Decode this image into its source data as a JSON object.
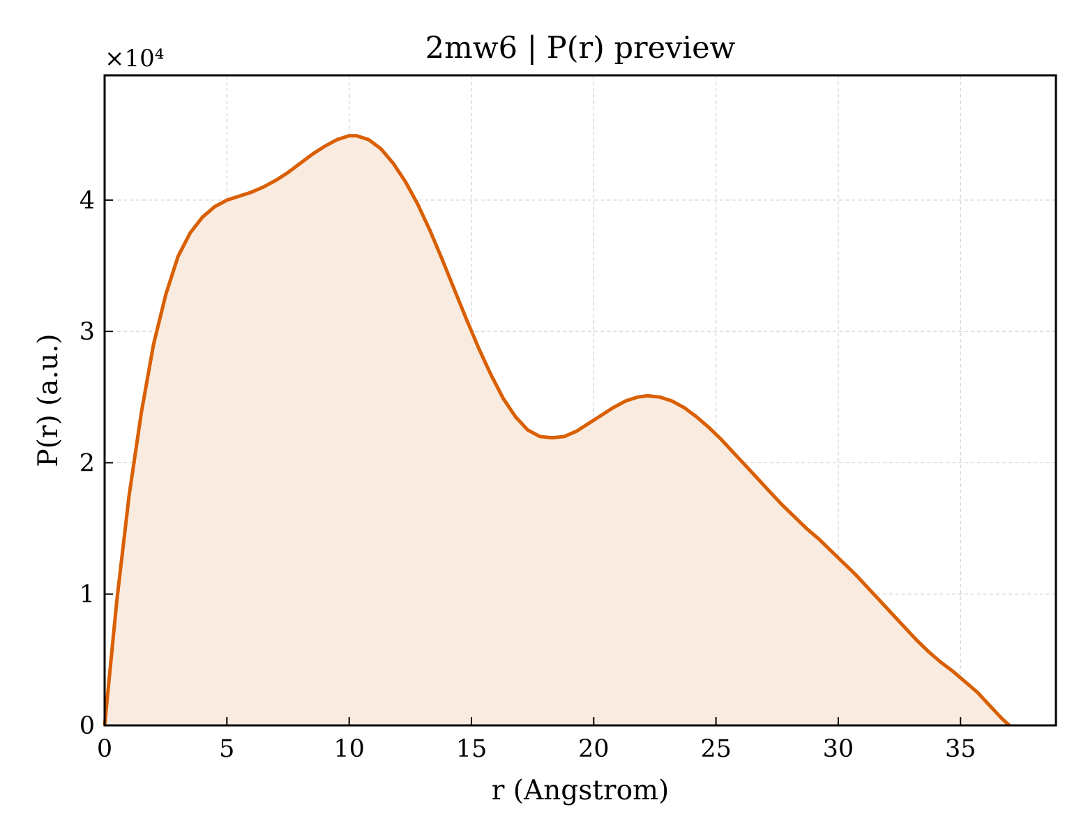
{
  "chart_data": {
    "type": "area",
    "title": "2mw6 | P(r) preview",
    "xlabel": "r (Angstrom)",
    "ylabel": "P(r) (a.u.)",
    "y_offset_label": "×10⁴",
    "xlim": [
      0,
      38.9
    ],
    "ylim": [
      0,
      4.95
    ],
    "xticks": [
      0,
      5,
      10,
      15,
      20,
      25,
      30,
      35
    ],
    "yticks": [
      0,
      1,
      2,
      3,
      4
    ],
    "grid": true,
    "line_color": "#d95f02",
    "fill_color": "#f9ebe0",
    "series": [
      {
        "x": [
          0,
          0.5,
          1.0,
          1.5,
          2.0,
          2.5,
          3.0,
          3.5,
          4.0,
          4.5,
          5.0,
          5.5,
          6.0,
          6.5,
          7.0,
          7.5,
          8.0,
          8.5,
          9.0,
          9.5,
          10.0,
          10.3,
          10.8,
          11.3,
          11.8,
          12.3,
          12.8,
          13.3,
          13.8,
          14.3,
          14.8,
          15.3,
          15.8,
          16.3,
          16.8,
          17.3,
          17.8,
          18.3,
          18.8,
          19.3,
          19.8,
          20.3,
          20.8,
          21.3,
          21.8,
          22.2,
          22.7,
          23.2,
          23.7,
          24.2,
          24.7,
          25.2,
          25.7,
          26.2,
          26.7,
          27.2,
          27.7,
          28.2,
          28.7,
          29.2,
          29.7,
          30.2,
          30.7,
          31.2,
          31.7,
          32.2,
          32.7,
          33.2,
          33.7,
          34.2,
          34.7,
          35.2,
          35.7,
          36.2,
          36.7,
          37.0
        ],
        "y": [
          0,
          0.95,
          1.75,
          2.38,
          2.9,
          3.28,
          3.57,
          3.75,
          3.87,
          3.95,
          4.0,
          4.03,
          4.06,
          4.1,
          4.15,
          4.21,
          4.28,
          4.35,
          4.41,
          4.46,
          4.49,
          4.49,
          4.46,
          4.39,
          4.28,
          4.14,
          3.97,
          3.77,
          3.55,
          3.32,
          3.09,
          2.87,
          2.67,
          2.49,
          2.35,
          2.25,
          2.2,
          2.19,
          2.2,
          2.24,
          2.3,
          2.36,
          2.42,
          2.47,
          2.5,
          2.51,
          2.5,
          2.47,
          2.42,
          2.35,
          2.27,
          2.18,
          2.08,
          1.98,
          1.88,
          1.78,
          1.68,
          1.59,
          1.5,
          1.42,
          1.33,
          1.24,
          1.15,
          1.05,
          0.95,
          0.85,
          0.75,
          0.65,
          0.56,
          0.48,
          0.41,
          0.33,
          0.25,
          0.15,
          0.05,
          -0.02
        ]
      }
    ]
  }
}
